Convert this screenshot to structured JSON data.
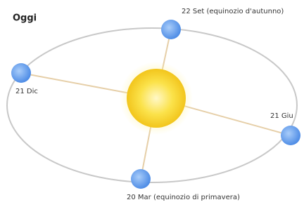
{
  "title": "Oggi",
  "nodes": [
    {
      "label": "22 Set (equinozio d'autunno)"
    },
    {
      "label": "21 Dic"
    },
    {
      "label": "21 Giu"
    },
    {
      "label": "20 Mar (equinozio di primavera)"
    }
  ]
}
